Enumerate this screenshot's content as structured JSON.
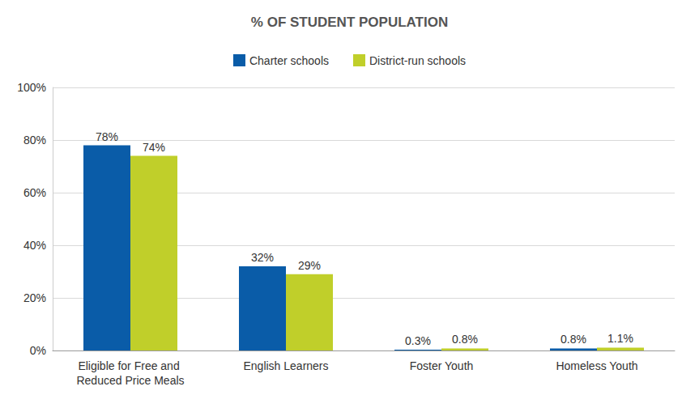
{
  "chart_data": {
    "type": "bar",
    "title": "% OF STUDENT POPULATION",
    "categories": [
      "Eligible for Free and Reduced Price Meals",
      "English Learners",
      "Foster Youth",
      "Homeless Youth"
    ],
    "series": [
      {
        "name": "Charter schools",
        "color": "#0a5ca8",
        "values": [
          78,
          32,
          0.3,
          0.8
        ],
        "value_labels": [
          "78%",
          "32%",
          "0.3%",
          "0.8%"
        ]
      },
      {
        "name": "District-run schools",
        "color": "#c0cf2a",
        "values": [
          74,
          29,
          0.8,
          1.1
        ],
        "value_labels": [
          "74%",
          "29%",
          "0.8%",
          "1.1%"
        ]
      }
    ],
    "ylim": [
      0,
      100
    ],
    "yticks": [
      {
        "value": 0,
        "label": "0%"
      },
      {
        "value": 20,
        "label": "20%"
      },
      {
        "value": 40,
        "label": "40%"
      },
      {
        "value": 60,
        "label": "60%"
      },
      {
        "value": 80,
        "label": "80%"
      },
      {
        "value": 100,
        "label": "100%"
      }
    ],
    "grid": true,
    "legend": "top",
    "data_labels": true
  }
}
